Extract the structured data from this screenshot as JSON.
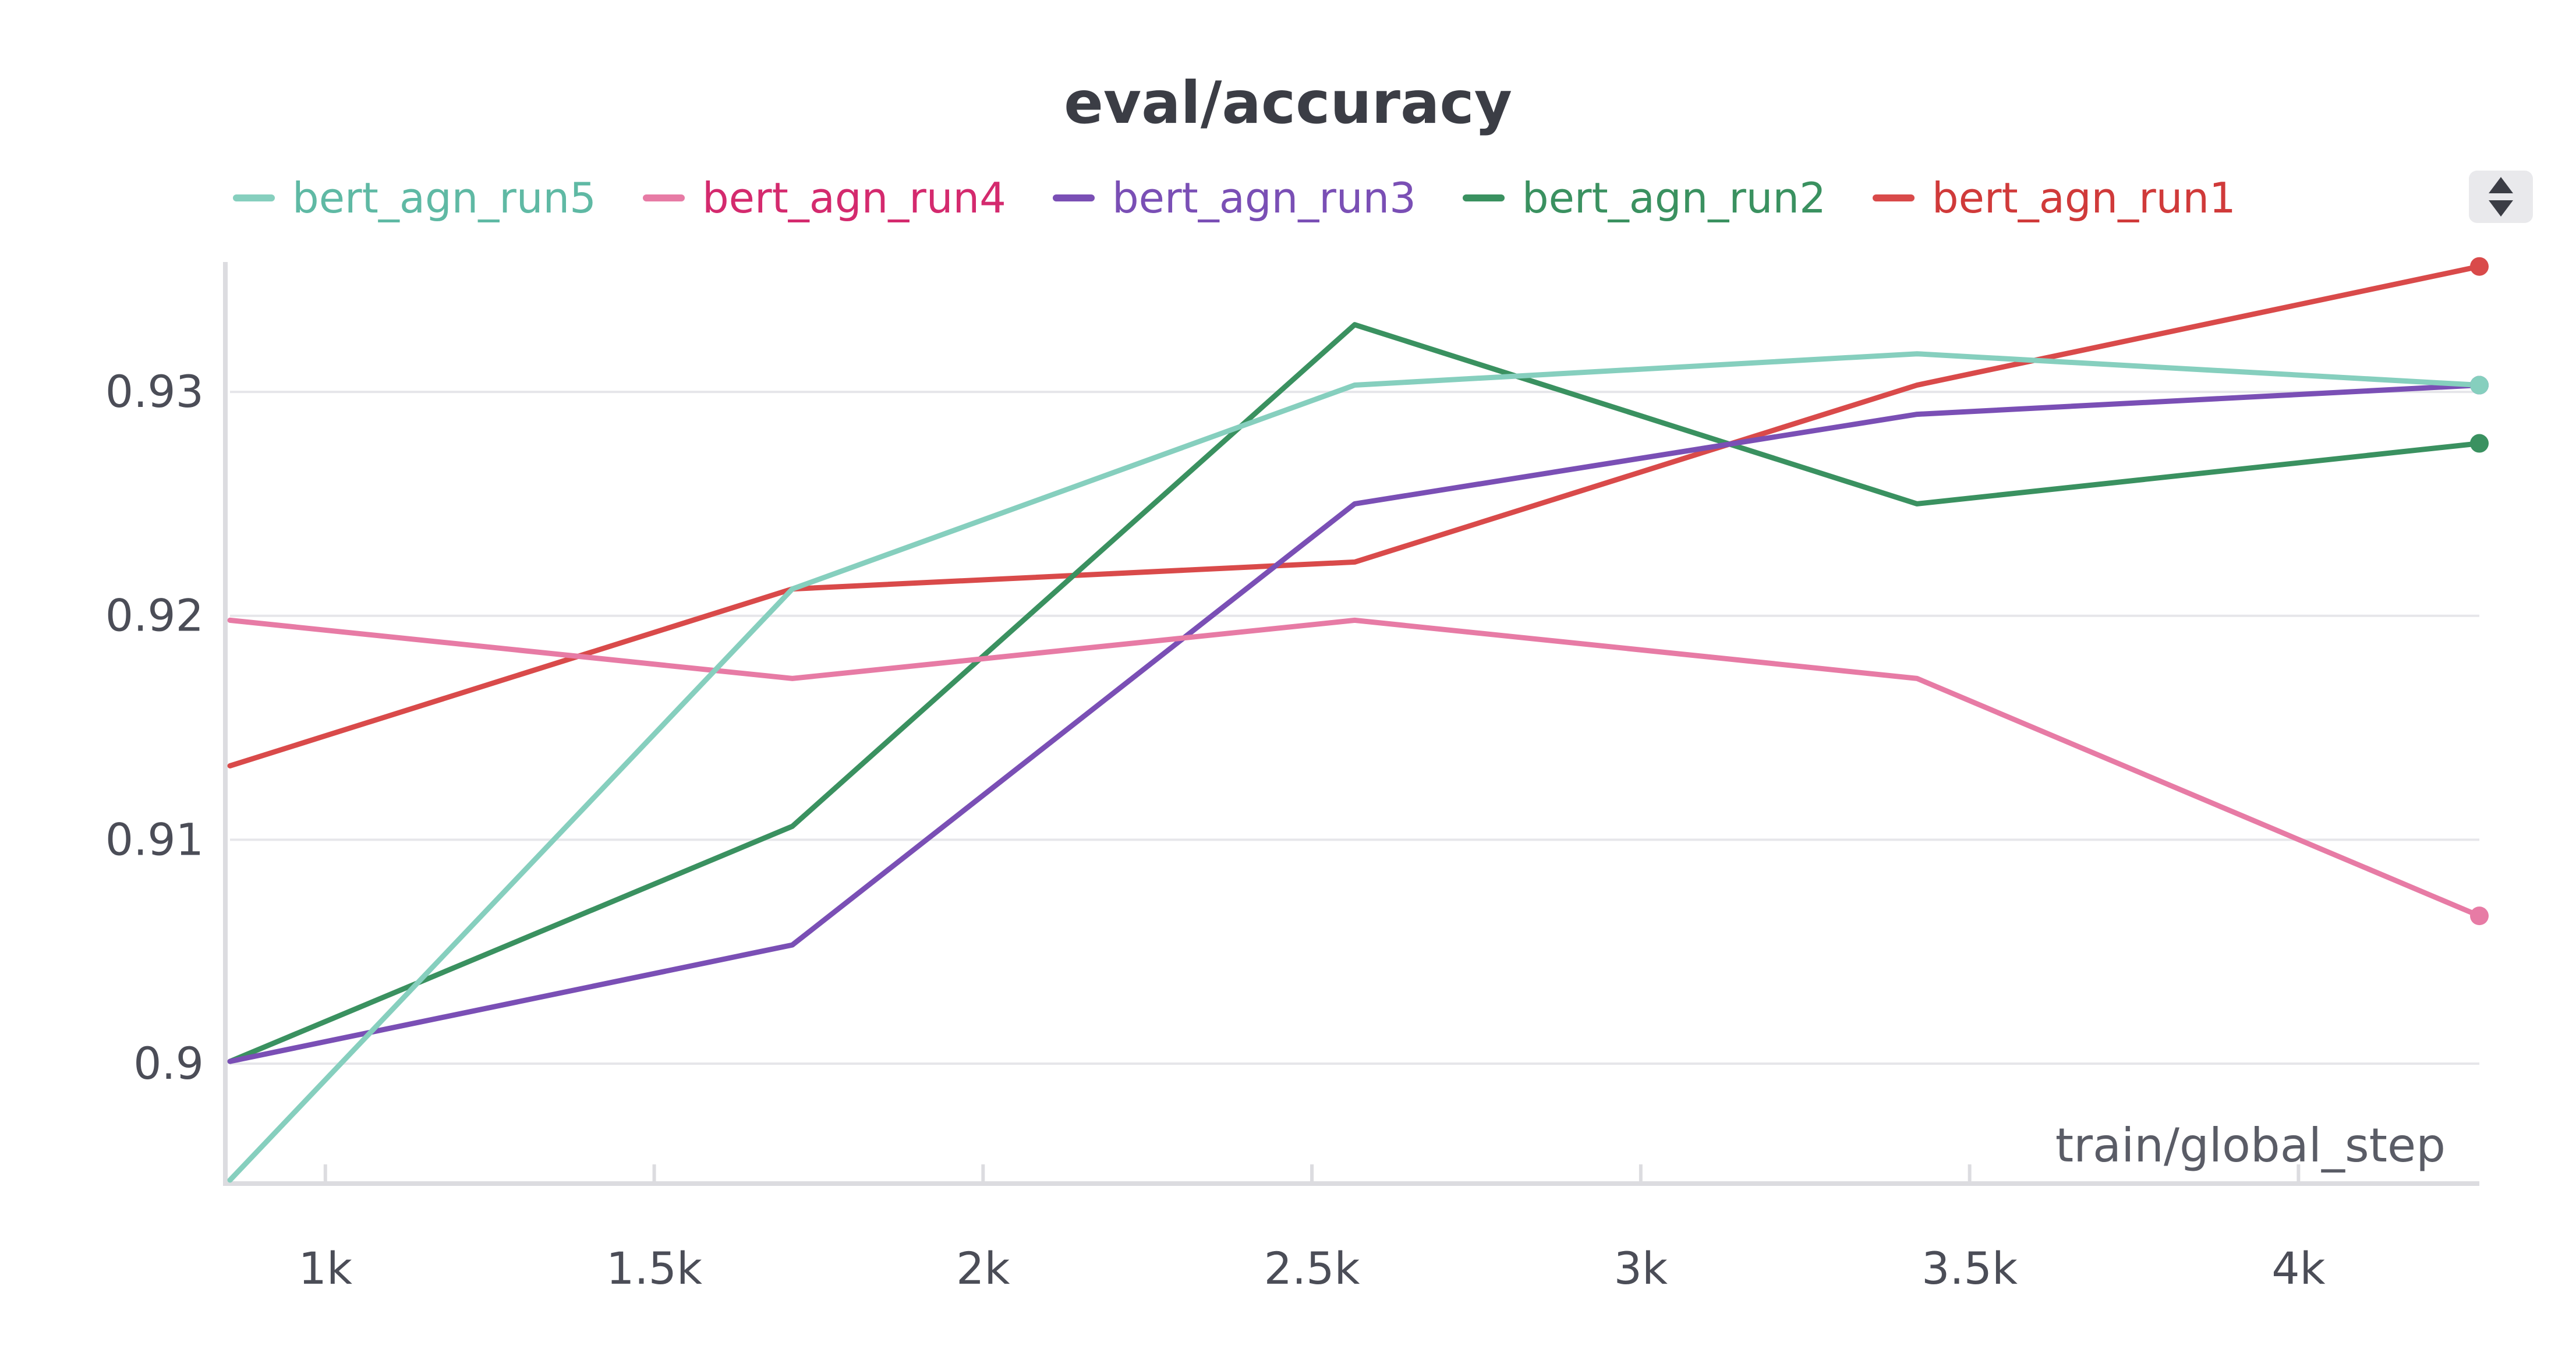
{
  "chart_data": {
    "type": "line",
    "title": "eval/accuracy",
    "xlabel": "train/global_step",
    "ylabel": "",
    "xlim": [
      855,
      4275
    ],
    "ylim": [
      0.8948,
      0.9358
    ],
    "grid": true,
    "legend_placement": "top-left",
    "x_ticks": [
      1000,
      1500,
      2000,
      2500,
      3000,
      3500,
      4000
    ],
    "x_tick_labels": [
      "1k",
      "1.5k",
      "2k",
      "2.5k",
      "3k",
      "3.5k",
      "4k"
    ],
    "y_ticks": [
      0.9,
      0.91,
      0.92,
      0.93
    ],
    "y_tick_labels": [
      "0.9",
      "0.91",
      "0.92",
      "0.93"
    ],
    "x": [
      855,
      1710,
      2565,
      3420,
      4275
    ],
    "series": [
      {
        "name": "bert_agn_run5",
        "color": "#86cfbe",
        "legend_color": "#5fb9a4",
        "values": [
          0.8948,
          0.9212,
          0.9303,
          0.9317,
          0.9303
        ]
      },
      {
        "name": "bert_agn_run4",
        "color": "#e77ba5",
        "legend_color": "#d42a6e",
        "values": [
          0.9198,
          0.9172,
          0.9198,
          0.9172,
          0.9066
        ]
      },
      {
        "name": "bert_agn_run3",
        "color": "#7a4fb5",
        "legend_color": "#7a4fb5",
        "values": [
          0.9001,
          0.9053,
          0.925,
          0.929,
          0.9303
        ]
      },
      {
        "name": "bert_agn_run2",
        "color": "#3a9160",
        "legend_color": "#3a9160",
        "values": [
          0.9001,
          0.9106,
          0.933,
          0.925,
          0.9277
        ]
      },
      {
        "name": "bert_agn_run1",
        "color": "#d94a4a",
        "legend_color": "#d03a3a",
        "values": [
          0.9133,
          0.9212,
          0.9224,
          0.9303,
          0.9356
        ]
      }
    ]
  },
  "controls": {
    "sort_icon": "sort-updown-icon"
  }
}
